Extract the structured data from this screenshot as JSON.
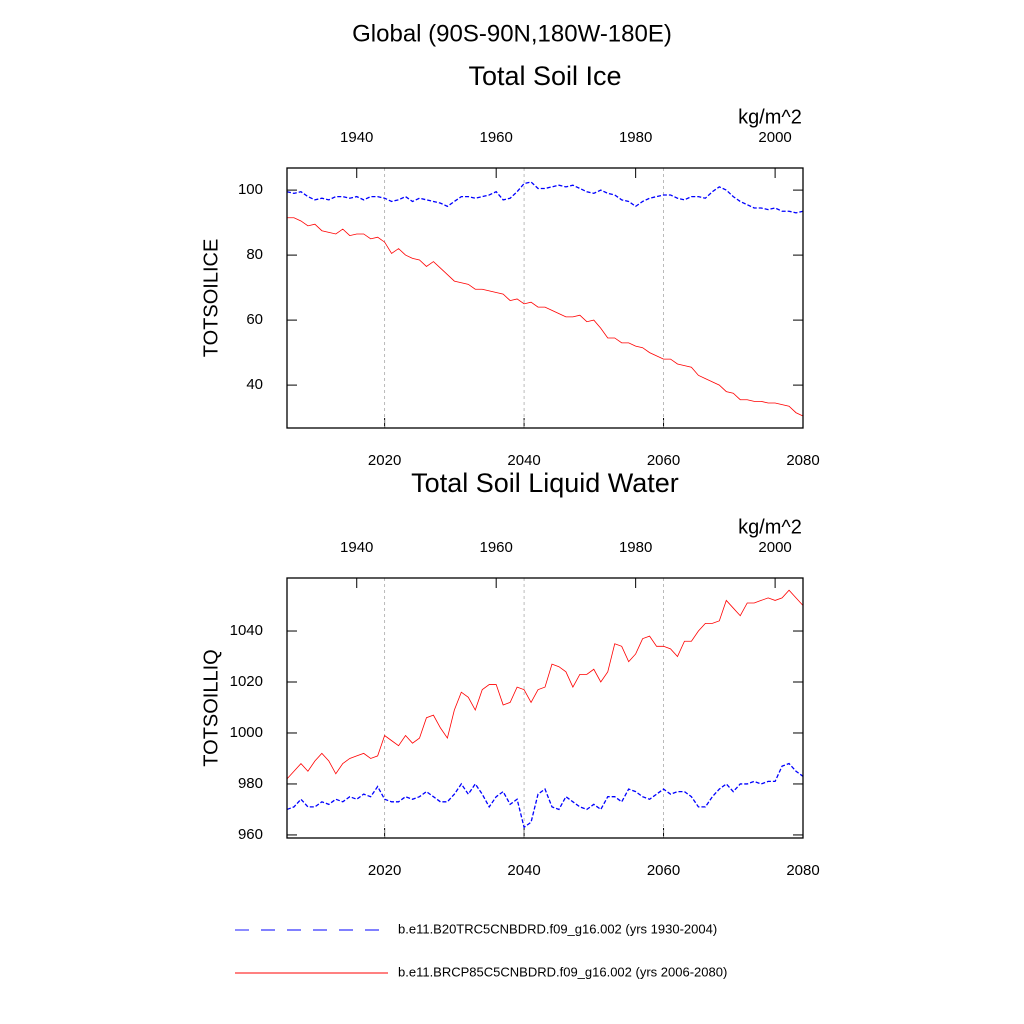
{
  "page_title": "Global (90S-90N,180W-180E)",
  "chart_data": [
    {
      "type": "line",
      "title": "Total Soil Ice",
      "units": "kg/m^2",
      "ylabel": "TOTSOILICE",
      "xlim": [
        2006,
        2080
      ],
      "xticks": [
        2020,
        2040,
        2060,
        2080
      ],
      "xtick_color": "#ff0000",
      "x2lim": [
        1930,
        2004
      ],
      "x2ticks": [
        1940,
        1960,
        1980,
        2000
      ],
      "x2tick_color": "#0000ff",
      "ylim": [
        26.8,
        106.8
      ],
      "yticks": [
        40,
        60,
        80,
        100
      ],
      "grid": true,
      "series": [
        {
          "name": "b.e11.B20TRC5CNBDRD.f09_g16.002 (yrs 1930-2004)",
          "color": "#0000ff",
          "line_style": "dashed",
          "xaxis": "x2",
          "x": [
            1930,
            1931,
            1932,
            1933,
            1934,
            1935,
            1936,
            1937,
            1938,
            1939,
            1940,
            1941,
            1942,
            1943,
            1944,
            1945,
            1946,
            1947,
            1948,
            1949,
            1950,
            1951,
            1952,
            1953,
            1954,
            1955,
            1956,
            1957,
            1958,
            1959,
            1960,
            1961,
            1962,
            1963,
            1964,
            1965,
            1966,
            1967,
            1968,
            1969,
            1970,
            1971,
            1972,
            1973,
            1974,
            1975,
            1976,
            1977,
            1978,
            1979,
            1980,
            1981,
            1982,
            1983,
            1984,
            1985,
            1986,
            1987,
            1988,
            1989,
            1990,
            1991,
            1992,
            1993,
            1994,
            1995,
            1996,
            1997,
            1998,
            1999,
            2000,
            2001,
            2002,
            2003,
            2004
          ],
          "values": [
            99.5,
            99,
            99.5,
            98,
            97,
            97.5,
            97,
            98,
            98,
            97.5,
            98,
            97,
            98,
            98,
            97.5,
            96.5,
            97,
            98,
            96.5,
            97.5,
            97,
            96.5,
            96,
            95,
            96.5,
            98,
            98,
            97.5,
            98,
            98.5,
            99.5,
            97,
            97.5,
            99.5,
            102,
            102.5,
            100.5,
            100.5,
            101,
            101.5,
            101,
            101.5,
            100.5,
            99.5,
            99,
            100,
            99,
            98.5,
            97,
            96.5,
            95,
            96.5,
            97.5,
            98,
            98.5,
            98.5,
            97.5,
            97,
            98,
            98,
            97.5,
            99.5,
            101,
            100,
            98,
            96.5,
            95.5,
            94.5,
            94.5,
            94,
            94.5,
            93.5,
            93.5,
            93,
            93.5
          ]
        },
        {
          "name": "b.e11.BRCP85C5CNBDRD.f09_g16.002 (yrs 2006-2080)",
          "color": "#ff0000",
          "line_style": "solid",
          "xaxis": "x",
          "x": [
            2006,
            2007,
            2008,
            2009,
            2010,
            2011,
            2012,
            2013,
            2014,
            2015,
            2016,
            2017,
            2018,
            2019,
            2020,
            2021,
            2022,
            2023,
            2024,
            2025,
            2026,
            2027,
            2028,
            2029,
            2030,
            2031,
            2032,
            2033,
            2034,
            2035,
            2036,
            2037,
            2038,
            2039,
            2040,
            2041,
            2042,
            2043,
            2044,
            2045,
            2046,
            2047,
            2048,
            2049,
            2050,
            2051,
            2052,
            2053,
            2054,
            2055,
            2056,
            2057,
            2058,
            2059,
            2060,
            2061,
            2062,
            2063,
            2064,
            2065,
            2066,
            2067,
            2068,
            2069,
            2070,
            2071,
            2072,
            2073,
            2074,
            2075,
            2076,
            2077,
            2078,
            2079,
            2080
          ],
          "values": [
            91.5,
            91.5,
            90.5,
            89,
            89.5,
            87.5,
            87,
            86.5,
            88,
            86,
            86.5,
            86.5,
            85,
            85.5,
            84,
            80.5,
            82,
            80,
            79,
            78.5,
            76.5,
            78,
            76,
            74,
            72,
            71.5,
            71,
            69.5,
            69.5,
            69,
            68.5,
            68,
            66,
            66.5,
            65,
            65.5,
            64,
            64,
            63,
            62,
            61,
            61,
            61.5,
            59.5,
            60,
            57.5,
            54.5,
            54.5,
            53,
            53,
            52,
            51.5,
            50,
            49,
            48,
            48,
            46.5,
            46,
            45.5,
            43,
            42,
            41,
            40,
            38,
            37.5,
            35.5,
            35.5,
            35,
            35,
            34.5,
            34.5,
            34,
            33.5,
            31.5,
            30.5
          ]
        }
      ]
    },
    {
      "type": "line",
      "title": "Total Soil Liquid Water",
      "units": "kg/m^2",
      "ylabel": "TOTSOILLIQ",
      "xlim": [
        2006,
        2080
      ],
      "xticks": [
        2020,
        2040,
        2060,
        2080
      ],
      "xtick_color": "#ff0000",
      "x2lim": [
        1930,
        2004
      ],
      "x2ticks": [
        1940,
        1960,
        1980,
        2000
      ],
      "x2tick_color": "#0000ff",
      "ylim": [
        958.8,
        1060.8
      ],
      "yticks": [
        960,
        980,
        1000,
        1020,
        1040
      ],
      "grid": true,
      "series": [
        {
          "color": "#0000ff",
          "line_style": "dashed",
          "xaxis": "x2",
          "x": [
            1930,
            1931,
            1932,
            1933,
            1934,
            1935,
            1936,
            1937,
            1938,
            1939,
            1940,
            1941,
            1942,
            1943,
            1944,
            1945,
            1946,
            1947,
            1948,
            1949,
            1950,
            1951,
            1952,
            1953,
            1954,
            1955,
            1956,
            1957,
            1958,
            1959,
            1960,
            1961,
            1962,
            1963,
            1964,
            1965,
            1966,
            1967,
            1968,
            1969,
            1970,
            1971,
            1972,
            1973,
            1974,
            1975,
            1976,
            1977,
            1978,
            1979,
            1980,
            1981,
            1982,
            1983,
            1984,
            1985,
            1986,
            1987,
            1988,
            1989,
            1990,
            1991,
            1992,
            1993,
            1994,
            1995,
            1996,
            1997,
            1998,
            1999,
            2000,
            2001,
            2002,
            2003,
            2004
          ],
          "values": [
            970,
            971,
            974,
            971,
            971,
            973,
            972,
            974,
            973,
            975,
            974,
            976,
            975,
            979,
            974,
            973,
            973,
            975,
            974,
            975,
            977,
            975,
            973,
            973,
            976,
            980,
            976,
            980,
            976,
            971,
            975,
            977,
            972,
            974,
            963,
            965,
            976,
            978,
            971,
            970,
            975,
            973,
            971,
            970,
            972,
            970,
            975,
            975,
            973,
            978,
            977,
            975,
            974,
            976,
            978,
            976,
            977,
            977,
            975,
            971,
            971,
            975,
            978,
            980,
            977,
            980,
            980,
            981,
            980,
            981,
            981,
            987,
            988,
            985,
            983
          ]
        },
        {
          "color": "#ff0000",
          "line_style": "solid",
          "xaxis": "x",
          "x": [
            2006,
            2007,
            2008,
            2009,
            2010,
            2011,
            2012,
            2013,
            2014,
            2015,
            2016,
            2017,
            2018,
            2019,
            2020,
            2021,
            2022,
            2023,
            2024,
            2025,
            2026,
            2027,
            2028,
            2029,
            2030,
            2031,
            2032,
            2033,
            2034,
            2035,
            2036,
            2037,
            2038,
            2039,
            2040,
            2041,
            2042,
            2043,
            2044,
            2045,
            2046,
            2047,
            2048,
            2049,
            2050,
            2051,
            2052,
            2053,
            2054,
            2055,
            2056,
            2057,
            2058,
            2059,
            2060,
            2061,
            2062,
            2063,
            2064,
            2065,
            2066,
            2067,
            2068,
            2069,
            2070,
            2071,
            2072,
            2073,
            2074,
            2075,
            2076,
            2077,
            2078,
            2079,
            2080
          ],
          "values": [
            982,
            985,
            988,
            985,
            989,
            992,
            989,
            984,
            988,
            990,
            991,
            992,
            990,
            991,
            999,
            997,
            995,
            999,
            996,
            998,
            1006,
            1007,
            1002,
            998,
            1009,
            1016,
            1014,
            1009,
            1017,
            1019,
            1019,
            1011,
            1012,
            1018,
            1017,
            1012,
            1017,
            1018,
            1027,
            1026,
            1024,
            1018,
            1023,
            1023,
            1025,
            1020,
            1024,
            1035,
            1034,
            1028,
            1031,
            1037,
            1038,
            1034,
            1034,
            1033,
            1030,
            1036,
            1036,
            1040,
            1043,
            1043,
            1044,
            1052,
            1049,
            1046,
            1051,
            1051,
            1052,
            1053,
            1052,
            1053,
            1056,
            1053,
            1050
          ]
        }
      ]
    }
  ]
}
